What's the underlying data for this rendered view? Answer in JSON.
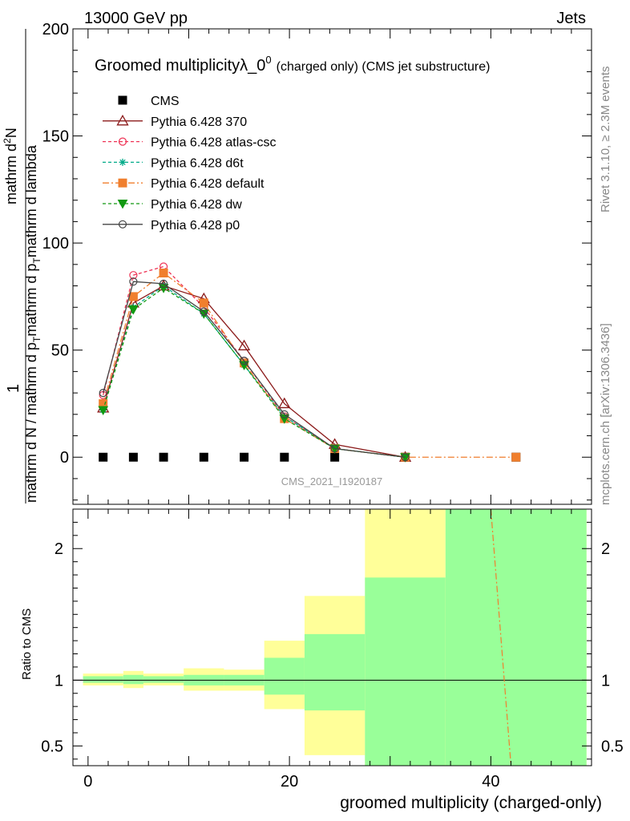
{
  "header": {
    "left": "13000 GeV pp",
    "right": "Jets"
  },
  "side": {
    "rivet": "Rivet 3.1.10, ≥ 2.3M events",
    "mcplots": "mcplots.cern.ch [arXiv:1306.3436]"
  },
  "analysis_id": "CMS_2021_I1920187",
  "chart_data": [
    {
      "type": "line",
      "title": "Groomed multiplicityλ_0",
      "title_sup": "0",
      "title_suffix": "(charged only) (CMS jet substructure)",
      "ylabel": "1/(mathrm d N / mathrm d p_T) mathrm d²N/(mathrm d p_T mathrm d lambda)",
      "ylabel_parts": {
        "num_one": "1",
        "den": "mathrm d N / mathrm d p",
        "den_sub": "T",
        "num_main": "mathrm d",
        "num_sup": "2",
        "num_N": "N",
        "den2_a": "mathrm d p",
        "den2_sub": "T",
        "den2_b": "mathrm d lambda"
      },
      "xlim": [
        -1.5,
        50
      ],
      "ylim": [
        -22,
        200
      ],
      "yticks": [
        0,
        50,
        100,
        150,
        200
      ],
      "series": [
        {
          "name": "CMS",
          "color": "#000000",
          "marker": "square-filled",
          "dash": "none",
          "x": [
            1.5,
            4.5,
            7.5,
            11.5,
            15.5,
            19.5,
            24.5,
            31.5,
            42.5
          ],
          "y": [
            0,
            0,
            0,
            0,
            0,
            0,
            0,
            0,
            0
          ]
        },
        {
          "name": "Pythia 6.428 370",
          "color": "#8b1a1a",
          "marker": "triangle-open",
          "dash": "none",
          "x": [
            1.5,
            4.5,
            7.5,
            11.5,
            15.5,
            19.5,
            24.5,
            31.5
          ],
          "y": [
            23,
            72,
            80,
            74,
            52,
            25,
            6,
            0
          ]
        },
        {
          "name": "Pythia 6.428 atlas-csc",
          "color": "#ee3355",
          "marker": "circle-open",
          "dash": "4,3",
          "x": [
            1.5,
            4.5,
            7.5,
            11.5,
            15.5,
            19.5,
            24.5,
            31.5
          ],
          "y": [
            29,
            85,
            89,
            70,
            45,
            19,
            4,
            0
          ]
        },
        {
          "name": "Pythia 6.428 d6t",
          "color": "#00aa88",
          "marker": "star",
          "dash": "4,3",
          "x": [
            1.5,
            4.5,
            7.5,
            11.5,
            15.5,
            19.5,
            24.5,
            31.5
          ],
          "y": [
            22,
            70,
            80,
            67,
            43,
            19,
            4,
            0
          ]
        },
        {
          "name": "Pythia 6.428 default",
          "color": "#f07f2e",
          "marker": "square-filled",
          "dash": "8,3,2,3",
          "x": [
            1.5,
            4.5,
            7.5,
            11.5,
            15.5,
            19.5,
            24.5,
            31.5,
            42.5
          ],
          "y": [
            25,
            75,
            86,
            72,
            44,
            18,
            4,
            0,
            0
          ]
        },
        {
          "name": "Pythia 6.428 dw",
          "color": "#119911",
          "marker": "triangle-down-filled",
          "dash": "4,3",
          "x": [
            1.5,
            4.5,
            7.5,
            11.5,
            15.5,
            19.5,
            24.5,
            31.5
          ],
          "y": [
            22,
            69,
            79,
            67,
            43,
            18,
            4,
            0
          ]
        },
        {
          "name": "Pythia 6.428 p0",
          "color": "#444444",
          "marker": "circle-open",
          "dash": "none",
          "x": [
            1.5,
            4.5,
            7.5,
            11.5,
            15.5,
            19.5,
            24.5,
            31.5
          ],
          "y": [
            30,
            82,
            81,
            68,
            45,
            20,
            4,
            0
          ]
        }
      ]
    },
    {
      "type": "area",
      "ylabel": "Ratio to CMS",
      "xlabel": "groomed multiplicity (charged-only)",
      "xlim": [
        -1.5,
        50
      ],
      "ylim": [
        0.35,
        2.3
      ],
      "xticks": [
        0,
        20,
        40
      ],
      "yticks": [
        0.5,
        1,
        2
      ],
      "ytick_labels": [
        "0.5",
        "1",
        "2"
      ],
      "reference_y": 1,
      "bins": [
        {
          "lo": -0.5,
          "hi": 3.5,
          "band_outer": [
            0.96,
            1.05
          ],
          "band_inner": [
            0.98,
            1.03
          ]
        },
        {
          "lo": 3.5,
          "hi": 5.5,
          "band_outer": [
            0.94,
            1.07
          ],
          "band_inner": [
            0.97,
            1.04
          ]
        },
        {
          "lo": 5.5,
          "hi": 9.5,
          "band_outer": [
            0.96,
            1.05
          ],
          "band_inner": [
            0.98,
            1.03
          ]
        },
        {
          "lo": 9.5,
          "hi": 13.5,
          "band_outer": [
            0.92,
            1.09
          ],
          "band_inner": [
            0.96,
            1.04
          ]
        },
        {
          "lo": 13.5,
          "hi": 17.5,
          "band_outer": [
            0.92,
            1.08
          ],
          "band_inner": [
            0.96,
            1.04
          ]
        },
        {
          "lo": 17.5,
          "hi": 21.5,
          "band_outer": [
            0.78,
            1.3
          ],
          "band_inner": [
            0.89,
            1.17
          ]
        },
        {
          "lo": 21.5,
          "hi": 27.5,
          "band_outer": [
            0.43,
            1.64
          ],
          "band_inner": [
            0.77,
            1.35
          ]
        },
        {
          "lo": 27.5,
          "hi": 35.5,
          "band_outer": [
            0.35,
            2.3
          ],
          "band_inner": [
            0.35,
            1.78
          ]
        },
        {
          "lo": 35.5,
          "hi": 49.5,
          "band_outer": [
            0.35,
            2.3
          ],
          "band_inner": [
            0.35,
            2.3
          ]
        }
      ],
      "band_colors": {
        "outer": "#ffff99",
        "inner": "#99ff99"
      },
      "ratio_curves": [
        {
          "name": "Pythia 6.428 default",
          "color": "#f07f2e",
          "dash": "8,3,2,3",
          "x": [
            40,
            42
          ],
          "y": [
            2.3,
            0.35
          ]
        }
      ]
    }
  ]
}
